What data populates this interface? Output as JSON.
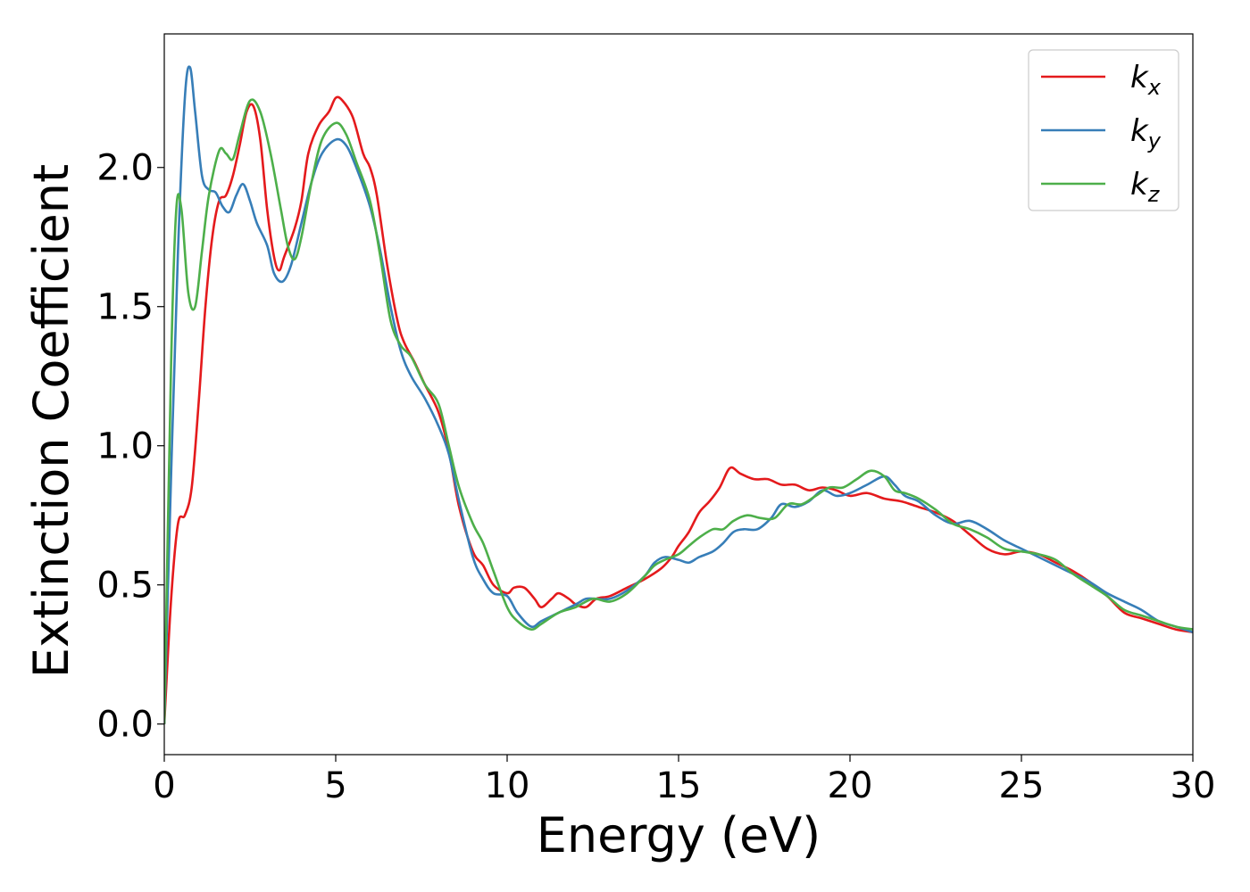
{
  "chart_data": {
    "type": "line",
    "title": "",
    "xlabel": "Energy (eV)",
    "ylabel": "Extinction Coefficient",
    "xlim": [
      0,
      30
    ],
    "ylim": [
      -0.11,
      2.48
    ],
    "xticks": [
      0,
      5,
      10,
      15,
      20,
      25,
      30
    ],
    "xtick_labels": [
      "0",
      "5",
      "10",
      "15",
      "20",
      "25",
      "30"
    ],
    "yticks": [
      0.0,
      0.5,
      1.0,
      1.5,
      2.0
    ],
    "ytick_labels": [
      "0.0",
      "0.5",
      "1.0",
      "1.5",
      "2.0"
    ],
    "grid": false,
    "legend_position": "top-right",
    "series": [
      {
        "name": "k_x",
        "legend_main": "k",
        "legend_sub": "x",
        "color": "#e41a1c",
        "points": [
          [
            0,
            0.0
          ],
          [
            0.2,
            0.45
          ],
          [
            0.4,
            0.72
          ],
          [
            0.6,
            0.75
          ],
          [
            0.8,
            0.85
          ],
          [
            1.0,
            1.15
          ],
          [
            1.2,
            1.5
          ],
          [
            1.4,
            1.75
          ],
          [
            1.6,
            1.88
          ],
          [
            1.8,
            1.9
          ],
          [
            2.0,
            1.97
          ],
          [
            2.2,
            2.08
          ],
          [
            2.4,
            2.2
          ],
          [
            2.6,
            2.22
          ],
          [
            2.8,
            2.1
          ],
          [
            3.0,
            1.85
          ],
          [
            3.2,
            1.68
          ],
          [
            3.35,
            1.63
          ],
          [
            3.5,
            1.68
          ],
          [
            3.8,
            1.78
          ],
          [
            4.0,
            1.88
          ],
          [
            4.2,
            2.05
          ],
          [
            4.5,
            2.15
          ],
          [
            4.8,
            2.2
          ],
          [
            5.0,
            2.25
          ],
          [
            5.2,
            2.24
          ],
          [
            5.5,
            2.18
          ],
          [
            5.8,
            2.05
          ],
          [
            6.0,
            2.0
          ],
          [
            6.2,
            1.9
          ],
          [
            6.5,
            1.65
          ],
          [
            6.8,
            1.45
          ],
          [
            7.0,
            1.37
          ],
          [
            7.3,
            1.3
          ],
          [
            7.6,
            1.22
          ],
          [
            8.0,
            1.12
          ],
          [
            8.3,
            0.98
          ],
          [
            8.6,
            0.78
          ],
          [
            9.0,
            0.62
          ],
          [
            9.3,
            0.57
          ],
          [
            9.6,
            0.5
          ],
          [
            10.0,
            0.47
          ],
          [
            10.2,
            0.49
          ],
          [
            10.5,
            0.49
          ],
          [
            10.8,
            0.45
          ],
          [
            11.0,
            0.42
          ],
          [
            11.3,
            0.45
          ],
          [
            11.5,
            0.47
          ],
          [
            11.8,
            0.45
          ],
          [
            12.0,
            0.43
          ],
          [
            12.3,
            0.42
          ],
          [
            12.6,
            0.45
          ],
          [
            13.0,
            0.46
          ],
          [
            13.5,
            0.49
          ],
          [
            14.0,
            0.52
          ],
          [
            14.5,
            0.56
          ],
          [
            14.8,
            0.6
          ],
          [
            15.0,
            0.64
          ],
          [
            15.3,
            0.69
          ],
          [
            15.6,
            0.76
          ],
          [
            15.9,
            0.8
          ],
          [
            16.2,
            0.85
          ],
          [
            16.5,
            0.92
          ],
          [
            16.8,
            0.9
          ],
          [
            17.2,
            0.88
          ],
          [
            17.6,
            0.88
          ],
          [
            18.0,
            0.86
          ],
          [
            18.4,
            0.86
          ],
          [
            18.8,
            0.84
          ],
          [
            19.2,
            0.85
          ],
          [
            19.6,
            0.84
          ],
          [
            20.0,
            0.82
          ],
          [
            20.5,
            0.83
          ],
          [
            21.0,
            0.81
          ],
          [
            21.5,
            0.8
          ],
          [
            22.0,
            0.78
          ],
          [
            22.5,
            0.76
          ],
          [
            23.0,
            0.73
          ],
          [
            23.5,
            0.68
          ],
          [
            24.0,
            0.63
          ],
          [
            24.5,
            0.61
          ],
          [
            25.0,
            0.62
          ],
          [
            25.5,
            0.61
          ],
          [
            26.0,
            0.58
          ],
          [
            26.5,
            0.55
          ],
          [
            27.0,
            0.51
          ],
          [
            27.5,
            0.46
          ],
          [
            28.0,
            0.4
          ],
          [
            28.5,
            0.38
          ],
          [
            29.0,
            0.36
          ],
          [
            29.5,
            0.34
          ],
          [
            30.0,
            0.33
          ]
        ]
      },
      {
        "name": "k_y",
        "legend_main": "k",
        "legend_sub": "y",
        "color": "#377eb8",
        "points": [
          [
            0,
            0.0
          ],
          [
            0.2,
            0.9
          ],
          [
            0.4,
            1.7
          ],
          [
            0.6,
            2.25
          ],
          [
            0.75,
            2.36
          ],
          [
            0.9,
            2.2
          ],
          [
            1.1,
            1.97
          ],
          [
            1.3,
            1.92
          ],
          [
            1.5,
            1.91
          ],
          [
            1.7,
            1.86
          ],
          [
            1.9,
            1.84
          ],
          [
            2.1,
            1.9
          ],
          [
            2.3,
            1.94
          ],
          [
            2.5,
            1.88
          ],
          [
            2.7,
            1.8
          ],
          [
            3.0,
            1.72
          ],
          [
            3.2,
            1.62
          ],
          [
            3.45,
            1.59
          ],
          [
            3.7,
            1.65
          ],
          [
            4.0,
            1.8
          ],
          [
            4.3,
            1.95
          ],
          [
            4.6,
            2.05
          ],
          [
            5.0,
            2.1
          ],
          [
            5.3,
            2.08
          ],
          [
            5.6,
            2.0
          ],
          [
            6.0,
            1.86
          ],
          [
            6.3,
            1.7
          ],
          [
            6.6,
            1.5
          ],
          [
            6.9,
            1.34
          ],
          [
            7.2,
            1.25
          ],
          [
            7.6,
            1.17
          ],
          [
            8.0,
            1.07
          ],
          [
            8.3,
            0.97
          ],
          [
            8.6,
            0.8
          ],
          [
            9.0,
            0.6
          ],
          [
            9.3,
            0.52
          ],
          [
            9.6,
            0.47
          ],
          [
            10.0,
            0.46
          ],
          [
            10.3,
            0.4
          ],
          [
            10.7,
            0.35
          ],
          [
            11.0,
            0.37
          ],
          [
            11.5,
            0.4
          ],
          [
            12.0,
            0.43
          ],
          [
            12.3,
            0.45
          ],
          [
            12.6,
            0.45
          ],
          [
            13.0,
            0.45
          ],
          [
            13.5,
            0.48
          ],
          [
            14.0,
            0.53
          ],
          [
            14.3,
            0.58
          ],
          [
            14.6,
            0.6
          ],
          [
            15.0,
            0.59
          ],
          [
            15.3,
            0.58
          ],
          [
            15.6,
            0.6
          ],
          [
            16.0,
            0.62
          ],
          [
            16.3,
            0.65
          ],
          [
            16.6,
            0.69
          ],
          [
            16.9,
            0.7
          ],
          [
            17.3,
            0.7
          ],
          [
            17.7,
            0.74
          ],
          [
            18.0,
            0.79
          ],
          [
            18.4,
            0.78
          ],
          [
            18.8,
            0.8
          ],
          [
            19.2,
            0.84
          ],
          [
            19.6,
            0.82
          ],
          [
            20.0,
            0.83
          ],
          [
            20.5,
            0.86
          ],
          [
            21.0,
            0.89
          ],
          [
            21.3,
            0.86
          ],
          [
            21.6,
            0.82
          ],
          [
            22.0,
            0.8
          ],
          [
            22.5,
            0.75
          ],
          [
            23.0,
            0.72
          ],
          [
            23.5,
            0.73
          ],
          [
            24.0,
            0.7
          ],
          [
            24.5,
            0.66
          ],
          [
            25.0,
            0.63
          ],
          [
            25.5,
            0.6
          ],
          [
            26.0,
            0.57
          ],
          [
            26.5,
            0.54
          ],
          [
            27.0,
            0.51
          ],
          [
            27.5,
            0.47
          ],
          [
            28.0,
            0.44
          ],
          [
            28.5,
            0.41
          ],
          [
            29.0,
            0.37
          ],
          [
            29.5,
            0.35
          ],
          [
            30.0,
            0.33
          ]
        ]
      },
      {
        "name": "k_z",
        "legend_main": "k",
        "legend_sub": "z",
        "color": "#4daf4a",
        "points": [
          [
            0,
            0.0
          ],
          [
            0.2,
            1.3
          ],
          [
            0.35,
            1.85
          ],
          [
            0.5,
            1.85
          ],
          [
            0.7,
            1.55
          ],
          [
            0.9,
            1.5
          ],
          [
            1.1,
            1.7
          ],
          [
            1.3,
            1.9
          ],
          [
            1.6,
            2.06
          ],
          [
            1.8,
            2.05
          ],
          [
            2.0,
            2.03
          ],
          [
            2.2,
            2.12
          ],
          [
            2.5,
            2.24
          ],
          [
            2.8,
            2.2
          ],
          [
            3.1,
            2.05
          ],
          [
            3.4,
            1.85
          ],
          [
            3.6,
            1.72
          ],
          [
            3.8,
            1.67
          ],
          [
            4.0,
            1.75
          ],
          [
            4.3,
            1.95
          ],
          [
            4.6,
            2.1
          ],
          [
            5.0,
            2.16
          ],
          [
            5.3,
            2.12
          ],
          [
            5.6,
            2.02
          ],
          [
            6.0,
            1.88
          ],
          [
            6.3,
            1.68
          ],
          [
            6.6,
            1.45
          ],
          [
            6.9,
            1.36
          ],
          [
            7.2,
            1.32
          ],
          [
            7.6,
            1.22
          ],
          [
            8.0,
            1.15
          ],
          [
            8.3,
            1.0
          ],
          [
            8.6,
            0.85
          ],
          [
            9.0,
            0.72
          ],
          [
            9.3,
            0.65
          ],
          [
            9.6,
            0.55
          ],
          [
            10.0,
            0.42
          ],
          [
            10.3,
            0.37
          ],
          [
            10.7,
            0.34
          ],
          [
            11.0,
            0.36
          ],
          [
            11.5,
            0.4
          ],
          [
            12.0,
            0.42
          ],
          [
            12.5,
            0.45
          ],
          [
            13.0,
            0.44
          ],
          [
            13.5,
            0.47
          ],
          [
            14.0,
            0.53
          ],
          [
            14.3,
            0.57
          ],
          [
            14.6,
            0.59
          ],
          [
            15.0,
            0.61
          ],
          [
            15.3,
            0.64
          ],
          [
            15.6,
            0.67
          ],
          [
            16.0,
            0.7
          ],
          [
            16.3,
            0.7
          ],
          [
            16.6,
            0.73
          ],
          [
            17.0,
            0.75
          ],
          [
            17.4,
            0.74
          ],
          [
            17.8,
            0.74
          ],
          [
            18.2,
            0.79
          ],
          [
            18.6,
            0.79
          ],
          [
            19.0,
            0.82
          ],
          [
            19.4,
            0.85
          ],
          [
            19.8,
            0.85
          ],
          [
            20.2,
            0.88
          ],
          [
            20.6,
            0.91
          ],
          [
            21.0,
            0.89
          ],
          [
            21.3,
            0.84
          ],
          [
            21.6,
            0.83
          ],
          [
            22.0,
            0.81
          ],
          [
            22.5,
            0.77
          ],
          [
            23.0,
            0.72
          ],
          [
            23.5,
            0.7
          ],
          [
            24.0,
            0.67
          ],
          [
            24.5,
            0.63
          ],
          [
            25.0,
            0.62
          ],
          [
            25.5,
            0.61
          ],
          [
            26.0,
            0.59
          ],
          [
            26.5,
            0.54
          ],
          [
            27.0,
            0.5
          ],
          [
            27.5,
            0.46
          ],
          [
            28.0,
            0.41
          ],
          [
            28.5,
            0.39
          ],
          [
            29.0,
            0.37
          ],
          [
            29.5,
            0.35
          ],
          [
            30.0,
            0.34
          ]
        ]
      }
    ]
  }
}
